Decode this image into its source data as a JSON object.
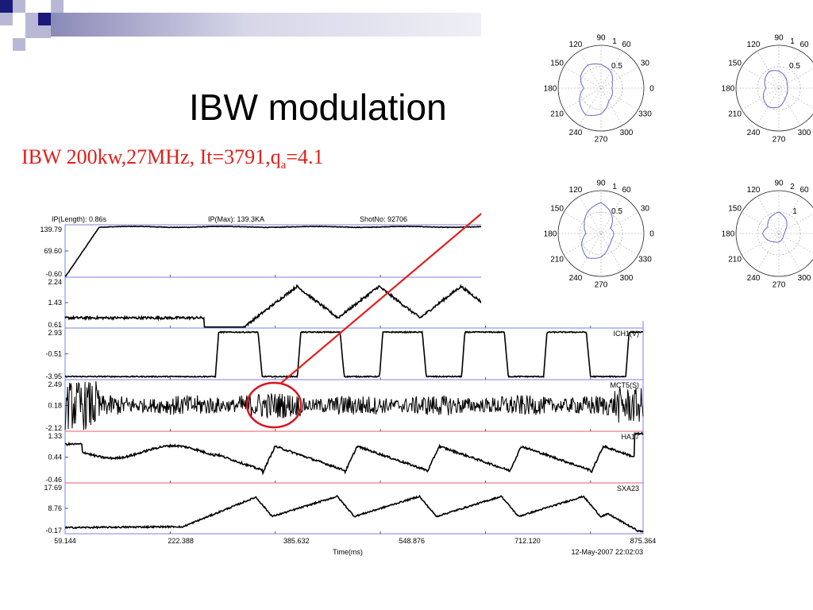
{
  "slide": {
    "title": "IBW modulation",
    "subtitle_pre": "IBW 200kw,27MHz, It=3791,q",
    "subtitle_sub": "a",
    "subtitle_post": "=4.1",
    "colors": {
      "title": "#000000",
      "subtitle": "#e0201b",
      "arrow": "#e0201b",
      "circle": "#d8141a",
      "deco_dark": "#1a1a7a",
      "deco_light": "#b8b8d6"
    }
  },
  "chart_data": [
    {
      "type": "line",
      "header": {
        "ip_length": "IP(Length): 0.86s",
        "ip_max": "IP(Max): 139.3KA",
        "shot_no": "ShotNo: 92706"
      },
      "xlabel": "Time(ms)",
      "date_stamp": "12-May-2007 22:02:03",
      "x_ticks": [
        "59.144",
        "222.388",
        "385.632",
        "548.876",
        "712.120",
        "875.364"
      ],
      "xlim": [
        59.144,
        875.364
      ],
      "panels": [
        {
          "name": "",
          "y_ticks": [
            "139.79",
            "69.60",
            "-0.60"
          ],
          "ylim": [
            -0.6,
            139.79
          ],
          "wave": "ip"
        },
        {
          "name": "",
          "y_ticks": [
            "2.24",
            "1.43",
            "0.61"
          ],
          "ylim": [
            0.61,
            2.24
          ],
          "wave": "triangle_small"
        },
        {
          "name": "ICH1(V)",
          "y_ticks": [
            "2.93",
            "-0.51",
            "-3.95"
          ],
          "ylim": [
            -3.95,
            2.93
          ],
          "wave": "square"
        },
        {
          "name": "MCT5(S)",
          "y_ticks": [
            "2.49",
            "0.18",
            "-2.12"
          ],
          "ylim": [
            -2.12,
            2.49
          ],
          "wave": "noise"
        },
        {
          "name": "HA17",
          "y_ticks": [
            "1.33",
            "0.44",
            "-0.46"
          ],
          "ylim": [
            -0.46,
            1.33
          ],
          "wave": "sawtooth"
        },
        {
          "name": "SXA23",
          "y_ticks": [
            "17.69",
            "8.76",
            "-0.17"
          ],
          "ylim": [
            -0.17,
            17.69
          ],
          "wave": "triangle_big"
        }
      ],
      "highlight_circle": {
        "x": 385.632,
        "panel": 3
      }
    },
    {
      "type": "polar",
      "angle_labels": [
        "0",
        "30",
        "60",
        "90",
        "120",
        "150",
        "180",
        "210",
        "240",
        "270",
        "300",
        "330"
      ],
      "plots": [
        {
          "id": "polar-1",
          "r_max": 1,
          "r_labels": [
            "1",
            "0.5"
          ]
        },
        {
          "id": "polar-2",
          "r_max": 1,
          "r_labels": [
            "1",
            "0.5"
          ]
        },
        {
          "id": "polar-3",
          "r_max": 1,
          "r_labels": [
            "1",
            "0.5"
          ]
        },
        {
          "id": "polar-4",
          "r_max": 2,
          "r_labels": [
            "2",
            "1"
          ]
        }
      ]
    }
  ]
}
